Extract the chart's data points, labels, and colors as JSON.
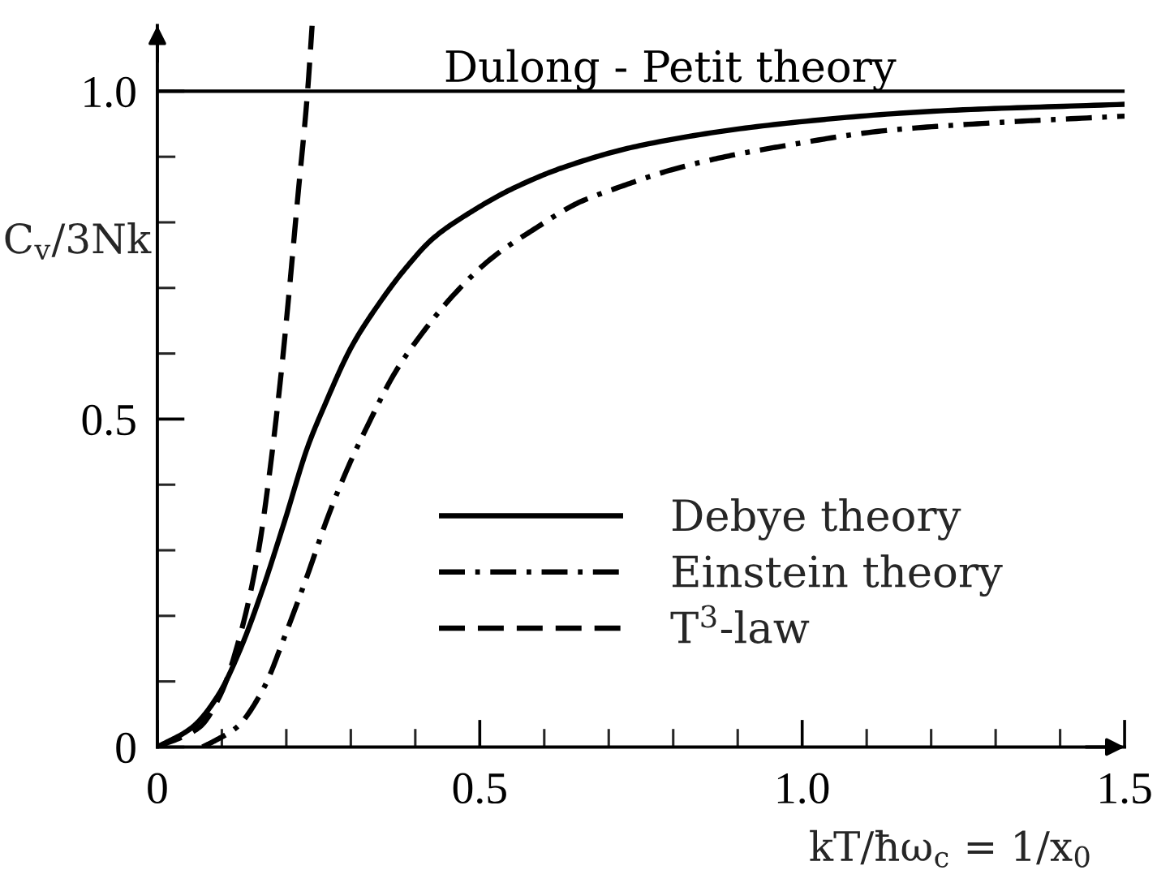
{
  "chart_data": {
    "type": "line",
    "xlabel": "kT/ħω$_{c}$ = 1/x$_{0}$",
    "ylabel": "C$_{v}$/3Nk",
    "xlim": [
      0,
      1.5
    ],
    "ylim": [
      0,
      1.1
    ],
    "xticks": [
      0,
      {
        "value": 0.1,
        "label": null
      },
      {
        "value": 0.2,
        "label": null
      },
      {
        "value": 0.3,
        "label": null
      },
      {
        "value": 0.4,
        "label": null
      },
      0.5,
      {
        "value": 0.6,
        "label": null
      },
      {
        "value": 0.7,
        "label": null
      },
      {
        "value": 0.8,
        "label": null
      },
      {
        "value": 0.9,
        "label": null
      },
      {
        "value": 1,
        "label": "1.0"
      },
      {
        "value": 1.1,
        "label": null
      },
      {
        "value": 1.2,
        "label": null
      },
      {
        "value": 1.3,
        "label": null
      },
      {
        "value": 1.4,
        "label": null
      },
      1.5
    ],
    "yticks": [
      0,
      {
        "value": 0.1,
        "label": null
      },
      {
        "value": 0.2,
        "label": null
      },
      {
        "value": 0.3,
        "label": null
      },
      {
        "value": 0.4,
        "label": null
      },
      0.5,
      {
        "value": 0.6,
        "label": null
      },
      {
        "value": 0.7,
        "label": null
      },
      {
        "value": 0.8,
        "label": null
      },
      {
        "value": 0.9,
        "label": null
      },
      {
        "value": 1,
        "label": "1.0"
      }
    ],
    "series": [
      {
        "name": "Debye theory",
        "color": "#000000",
        "line_style": "solid",
        "x": [
          0,
          0.054,
          0.095,
          0.129,
          0.163,
          0.196,
          0.234,
          0.259,
          0.301,
          0.343,
          0.385,
          0.427,
          0.485,
          0.552,
          0.636,
          0.753,
          0.965,
          1.214,
          1.5
        ],
        "values": [
          0,
          0.03,
          0.08,
          0.15,
          0.24,
          0.34,
          0.46,
          0.52,
          0.61,
          0.675,
          0.73,
          0.775,
          0.815,
          0.852,
          0.886,
          0.918,
          0.95,
          0.97,
          0.98
        ]
      },
      {
        "name": "Einstein theory",
        "color": "#000000",
        "line_style": "dashdot",
        "x": [
          0.07,
          0.09,
          0.123,
          0.165,
          0.198,
          0.232,
          0.266,
          0.295,
          0.326,
          0.368,
          0.41,
          0.46,
          0.518,
          0.585,
          0.653,
          0.72,
          0.797,
          0.88,
          0.962,
          1.13,
          1.3,
          1.5
        ],
        "values": [
          0,
          0.01,
          0.03,
          0.09,
          0.17,
          0.26,
          0.355,
          0.425,
          0.49,
          0.57,
          0.63,
          0.69,
          0.745,
          0.79,
          0.83,
          0.855,
          0.88,
          0.9,
          0.915,
          0.94,
          0.952,
          0.962
        ]
      },
      {
        "name": "T$^{3}$-law",
        "color": "#000000",
        "line_style": "dashed",
        "x": [
          0,
          0.065,
          0.098,
          0.131,
          0.157,
          0.173,
          0.192,
          0.204,
          0.217,
          0.233,
          0.24
        ],
        "values": [
          0,
          0.03,
          0.08,
          0.18,
          0.3,
          0.41,
          0.57,
          0.69,
          0.83,
          1.0,
          1.1
        ]
      }
    ],
    "ref_lines": [
      {
        "axis": "y",
        "value": 1,
        "label": "Dulong - Petit theory",
        "color": "#000000",
        "line_style": "solid"
      }
    ],
    "legend": "bottom right"
  }
}
